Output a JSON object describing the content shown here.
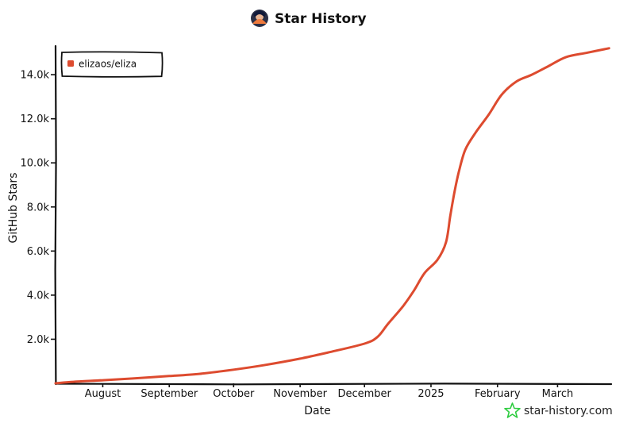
{
  "chart_data": {
    "type": "line",
    "title": "Star History",
    "xlabel": "Date",
    "ylabel": "GitHub Stars",
    "x_tick_labels": [
      "August",
      "September",
      "October",
      "November",
      "December",
      "2025",
      "February",
      "March"
    ],
    "x_ticks": [
      "2024-08-01",
      "2024-09-01",
      "2024-10-01",
      "2024-11-01",
      "2024-12-01",
      "2025-01-01",
      "2025-02-01",
      "2025-03-01"
    ],
    "y_tick_labels": [
      "2.0k",
      "4.0k",
      "6.0k",
      "8.0k",
      "10.0k",
      "12.0k",
      "14.0k"
    ],
    "y_ticks": [
      2000,
      4000,
      6000,
      8000,
      10000,
      12000,
      14000
    ],
    "xlim": [
      "2024-07-10",
      "2025-03-26"
    ],
    "ylim": [
      0,
      15300
    ],
    "legend": "top-left",
    "grid": false,
    "series": [
      {
        "name": "elizaos/eliza",
        "color": "#dd4b2f",
        "points": [
          [
            "2024-07-10",
            0
          ],
          [
            "2024-07-20",
            80
          ],
          [
            "2024-08-01",
            140
          ],
          [
            "2024-08-15",
            220
          ],
          [
            "2024-09-01",
            330
          ],
          [
            "2024-09-15",
            430
          ],
          [
            "2024-10-01",
            620
          ],
          [
            "2024-10-15",
            820
          ],
          [
            "2024-11-01",
            1120
          ],
          [
            "2024-11-15",
            1420
          ],
          [
            "2024-12-01",
            1800
          ],
          [
            "2024-12-07",
            2100
          ],
          [
            "2024-12-12",
            2700
          ],
          [
            "2024-12-19",
            3500
          ],
          [
            "2024-12-24",
            4200
          ],
          [
            "2024-12-29",
            5000
          ],
          [
            "2025-01-04",
            5600
          ],
          [
            "2025-01-08",
            6400
          ],
          [
            "2025-01-10",
            7600
          ],
          [
            "2025-01-12",
            8700
          ],
          [
            "2025-01-14",
            9600
          ],
          [
            "2025-01-17",
            10600
          ],
          [
            "2025-01-22",
            11400
          ],
          [
            "2025-01-28",
            12200
          ],
          [
            "2025-02-03",
            13100
          ],
          [
            "2025-02-10",
            13700
          ],
          [
            "2025-02-17",
            14000
          ],
          [
            "2025-02-25",
            14400
          ],
          [
            "2025-03-05",
            14800
          ],
          [
            "2025-03-15",
            15000
          ],
          [
            "2025-03-25",
            15200
          ]
        ]
      }
    ]
  },
  "watermark": "star-history.com",
  "icons": {
    "title_avatar": "avatar-icon",
    "watermark_logo": "star-logo-icon"
  },
  "colors": {
    "line": "#dd4b2f",
    "axis": "#111111",
    "watermark_logo": "#2ecc40"
  }
}
